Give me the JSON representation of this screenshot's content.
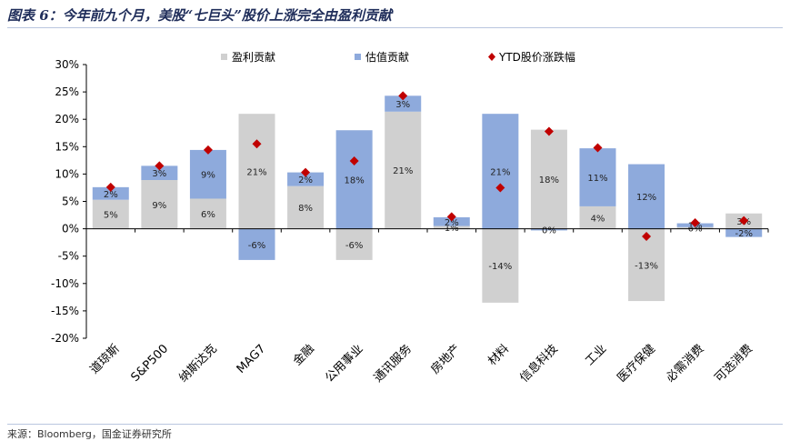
{
  "header": {
    "title": "图表 6：今年前九个月，美股“七巨头”股价上涨完全由盈利贡献"
  },
  "footer": {
    "source": "来源：Bloomberg，国金证券研究所"
  },
  "colors": {
    "earnings": "#d0d0d0",
    "valuation": "#8eaadc",
    "ytd": "#c00000"
  },
  "chart_data": {
    "type": "bar",
    "stacked": true,
    "categories": [
      "道琼斯",
      "S&P500",
      "纳斯达克",
      "MAG7",
      "金融",
      "公用事业",
      "通讯服务",
      "房地产",
      "材料",
      "信息科技",
      "工业",
      "医疗保健",
      "必需消费",
      "可选消费"
    ],
    "series": [
      {
        "name": "盈利贡献",
        "values": [
          5.3,
          8.9,
          5.5,
          21.0,
          7.8,
          -5.7,
          21.4,
          0.5,
          -13.5,
          18.1,
          4.1,
          -13.2,
          0.3,
          2.8
        ],
        "labels": [
          "5%",
          "9%",
          "6%",
          "21%",
          "8%",
          "-6%",
          "21%",
          "1%",
          "-14%",
          "18%",
          "4%",
          "-13%",
          "0%",
          "3%"
        ]
      },
      {
        "name": "估值贡献",
        "values": [
          2.3,
          2.6,
          8.9,
          -5.7,
          2.5,
          18.0,
          2.9,
          1.6,
          21.0,
          -0.3,
          10.6,
          11.8,
          0.7,
          -1.5
        ],
        "labels": [
          "2%",
          "3%",
          "9%",
          "-6%",
          "2%",
          "18%",
          "3%",
          "2%",
          "21%",
          "0%",
          "11%",
          "12%",
          "1%",
          "-2%"
        ]
      },
      {
        "name": "YTD股价涨跌幅",
        "type": "scatter",
        "values": [
          7.6,
          11.5,
          14.4,
          15.5,
          10.3,
          12.4,
          24.3,
          2.2,
          7.5,
          17.8,
          14.8,
          -1.4,
          1.1,
          1.5
        ]
      }
    ],
    "yticks": [
      "30%",
      "25%",
      "20%",
      "15%",
      "10%",
      "5%",
      "0%",
      "-5%",
      "-10%",
      "-15%",
      "-20%"
    ],
    "ylim": [
      -20,
      30
    ],
    "legend": "top",
    "grid": false
  }
}
